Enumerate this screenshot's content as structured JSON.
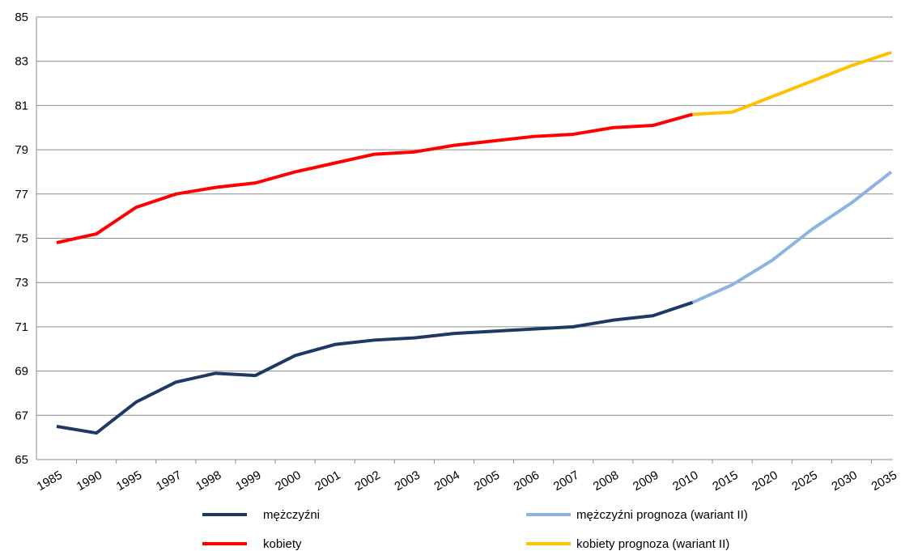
{
  "chart_data": {
    "type": "line",
    "categories": [
      "1985",
      "1990",
      "1995",
      "1997",
      "1998",
      "1999",
      "2000",
      "2001",
      "2002",
      "2003",
      "2004",
      "2005",
      "2006",
      "2007",
      "2008",
      "2009",
      "2010",
      "2015",
      "2020",
      "2025",
      "2030",
      "2035"
    ],
    "series": [
      {
        "name": "mężczyźni",
        "color": "#1f3864",
        "values": [
          66.5,
          66.2,
          67.6,
          68.5,
          68.9,
          68.8,
          69.7,
          70.2,
          70.4,
          70.5,
          70.7,
          70.8,
          70.9,
          71.0,
          71.3,
          71.5,
          72.1,
          null,
          null,
          null,
          null,
          null
        ]
      },
      {
        "name": "kobiety",
        "color": "#ff0000",
        "values": [
          74.8,
          75.2,
          76.4,
          77.0,
          77.3,
          77.5,
          78.0,
          78.4,
          78.8,
          78.9,
          79.2,
          79.4,
          79.6,
          79.7,
          80.0,
          80.1,
          80.6,
          null,
          null,
          null,
          null,
          null
        ]
      },
      {
        "name": "mężczyźni prognoza (wariant II)",
        "color": "#8db3e2",
        "values": [
          null,
          null,
          null,
          null,
          null,
          null,
          null,
          null,
          null,
          null,
          null,
          null,
          null,
          null,
          null,
          null,
          72.1,
          72.9,
          74.0,
          75.4,
          76.6,
          78.0
        ]
      },
      {
        "name": "kobiety prognoza (wariant II)",
        "color": "#ffc000",
        "values": [
          null,
          null,
          null,
          null,
          null,
          null,
          null,
          null,
          null,
          null,
          null,
          null,
          null,
          null,
          null,
          null,
          80.6,
          80.7,
          81.4,
          82.1,
          82.8,
          83.4
        ]
      }
    ],
    "ylim": [
      65,
      85
    ],
    "yticks": [
      65,
      67,
      69,
      71,
      73,
      75,
      77,
      79,
      81,
      83,
      85
    ],
    "grid": true
  }
}
